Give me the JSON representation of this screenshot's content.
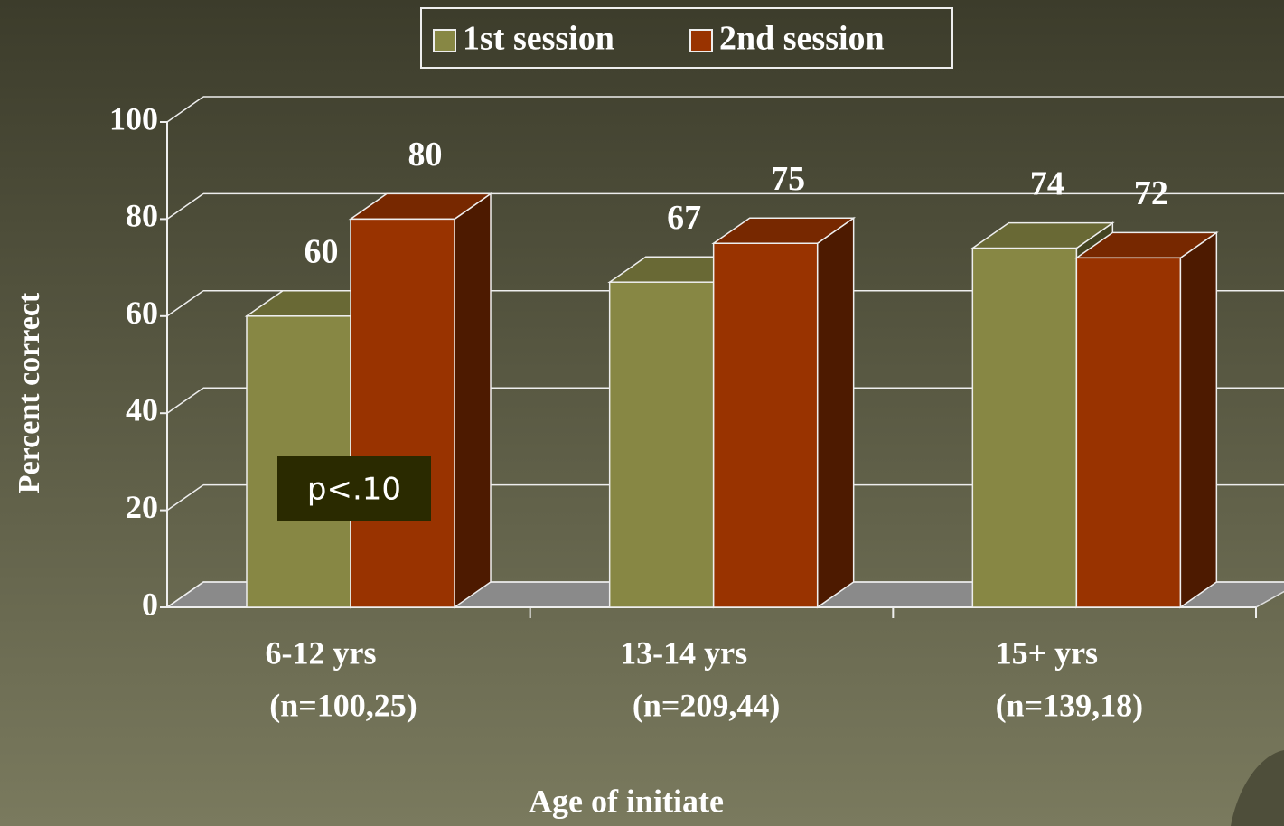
{
  "chart_data": {
    "type": "bar3d",
    "categories": [
      [
        "6-12 yrs",
        "(n=100,25)"
      ],
      [
        "13-14 yrs",
        "(n=209,44)"
      ],
      [
        "15+ yrs",
        "(n=139,18)"
      ]
    ],
    "series": [
      {
        "name": "1st session",
        "color": "#878744",
        "values": [
          60,
          67,
          74
        ]
      },
      {
        "name": "2nd session",
        "color": "#993300",
        "values": [
          80,
          75,
          72
        ]
      }
    ],
    "ylim": [
      0,
      100
    ],
    "yticks": [
      0,
      20,
      40,
      60,
      80,
      100
    ],
    "grid": true,
    "legend": "top",
    "y_label": "Percent correct",
    "x_label": "Age of initiate",
    "annotation": "p<.10"
  }
}
